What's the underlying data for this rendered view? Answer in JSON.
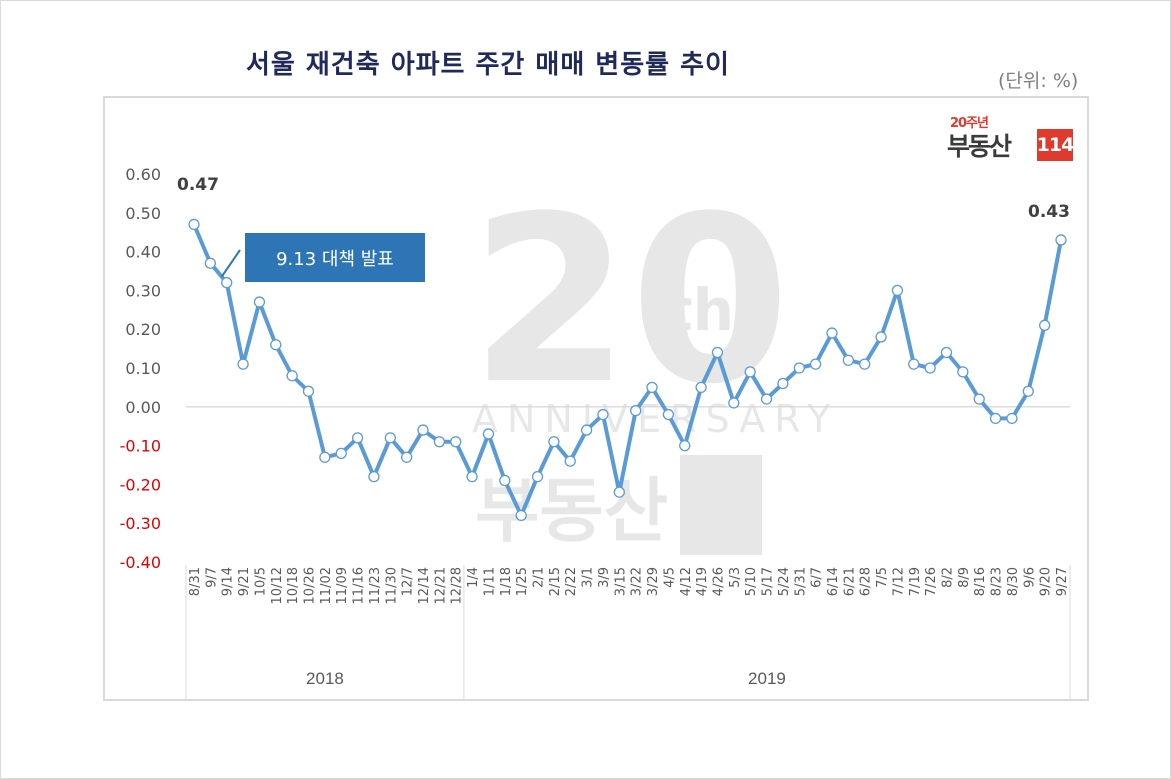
{
  "title": "서울 재건축 아파트 주간 매매 변동률 추이",
  "unit_label": "(단위: %)",
  "callout": {
    "text": "9.13 대책 발표"
  },
  "logo": {
    "anniversary": "20주년",
    "brand": "부동산",
    "number": "114"
  },
  "watermark": {
    "big": "20",
    "sup": "th",
    "word": "ANNIVERSARY",
    "brand": "부동산",
    "number": "114"
  },
  "colors": {
    "line": "#5b9bd5",
    "title": "#1f2a5a",
    "negative_tick": "#e00000",
    "positive_tick": "#595959",
    "callout_bg": "#2e75b6",
    "logo_red": "#e03a2f"
  },
  "chart_data": {
    "type": "line",
    "title": "서울 재건축 아파트 주간 매매 변동률 추이",
    "xlabel": "",
    "ylabel": "(단위: %)",
    "ylim": [
      -0.4,
      0.6
    ],
    "yticks": [
      "0.60",
      "0.50",
      "0.40",
      "0.30",
      "0.20",
      "0.10",
      "0.00",
      "-0.10",
      "-0.20",
      "-0.30",
      "-0.40"
    ],
    "grid": false,
    "legend": null,
    "categories": [
      "8/31",
      "9/7",
      "9/14",
      "9/21",
      "10/5",
      "10/12",
      "10/18",
      "10/26",
      "11/02",
      "11/09",
      "11/16",
      "11/23",
      "11/30",
      "12/7",
      "12/14",
      "12/21",
      "12/28",
      "1/4",
      "1/11",
      "1/18",
      "1/25",
      "2/1",
      "2/15",
      "2/22",
      "3/1",
      "3/9",
      "3/15",
      "3/22",
      "3/29",
      "4/5",
      "4/12",
      "4/19",
      "4/26",
      "5/3",
      "5/10",
      "5/17",
      "5/24",
      "5/31",
      "6/7",
      "6/14",
      "6/21",
      "6/28",
      "7/5",
      "7/12",
      "7/19",
      "7/26",
      "8/2",
      "8/9",
      "8/16",
      "8/23",
      "8/30",
      "9/6",
      "9/20",
      "9/27"
    ],
    "year_groups": [
      {
        "label": "2018",
        "start": 0,
        "end": 16
      },
      {
        "label": "2019",
        "start": 17,
        "end": 53
      }
    ],
    "series": [
      {
        "name": "서울 재건축 아파트 주간 매매 변동률",
        "values": [
          0.47,
          0.37,
          0.32,
          0.11,
          0.27,
          0.16,
          0.08,
          0.04,
          -0.13,
          -0.12,
          -0.08,
          -0.18,
          -0.08,
          -0.13,
          -0.06,
          -0.09,
          -0.09,
          -0.18,
          -0.07,
          -0.19,
          -0.28,
          -0.18,
          -0.09,
          -0.14,
          -0.06,
          -0.02,
          -0.22,
          -0.01,
          0.05,
          -0.02,
          -0.1,
          0.05,
          0.14,
          0.01,
          0.09,
          0.02,
          0.06,
          0.1,
          0.11,
          0.19,
          0.12,
          0.11,
          0.18,
          0.3,
          0.11,
          0.1,
          0.14,
          0.09,
          0.02,
          -0.03,
          -0.03,
          0.04,
          0.21,
          0.43
        ]
      }
    ],
    "annotations": [
      {
        "text": "0.47",
        "at": "8/31"
      },
      {
        "text": "0.43",
        "at": "9/27"
      },
      {
        "text": "9.13 대책 발표",
        "at": "9/14"
      }
    ]
  }
}
